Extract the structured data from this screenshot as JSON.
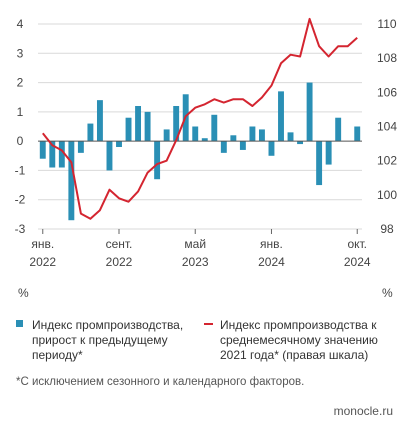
{
  "units": {
    "left": "%",
    "right": "%"
  },
  "legend": [
    {
      "label": "Индекс промпроизводства,\nприрост к предыдущему\nпериоду*",
      "color": "#2a8fb5",
      "kind": "bar"
    },
    {
      "label": "Индекс промпроизводства к\nсреднемесячному значению\n2021 года* (правая шкала)",
      "color": "#d42530",
      "kind": "line"
    }
  ],
  "footnote": "*С исключением сезонного и календарного факторов.",
  "source": "monocle.ru",
  "chart_data": {
    "type": "bar+line",
    "categories": [
      "2022-01",
      "2022-02",
      "2022-03",
      "2022-04",
      "2022-05",
      "2022-06",
      "2022-07",
      "2022-08",
      "2022-09",
      "2022-10",
      "2022-11",
      "2022-12",
      "2023-01",
      "2023-02",
      "2023-03",
      "2023-04",
      "2023-05",
      "2023-06",
      "2023-07",
      "2023-08",
      "2023-09",
      "2023-10",
      "2023-11",
      "2023-12",
      "2024-01",
      "2024-02",
      "2024-03",
      "2024-04",
      "2024-05",
      "2024-06",
      "2024-07",
      "2024-08",
      "2024-09",
      "2024-10"
    ],
    "x_tick_labels": [
      {
        "index": 0,
        "line1": "янв.",
        "line2": "2022"
      },
      {
        "index": 8,
        "line1": "сент.",
        "line2": "2022"
      },
      {
        "index": 16,
        "line1": "май",
        "line2": "2023"
      },
      {
        "index": 24,
        "line1": "янв.",
        "line2": "2024"
      },
      {
        "index": 33,
        "line1": "окт.",
        "line2": "2024"
      }
    ],
    "series": [
      {
        "name": "Индекс промпроизводства, прирост к предыдущему периоду*",
        "axis": "left",
        "type": "bar",
        "color": "#2a8fb5",
        "values": [
          -0.6,
          -0.9,
          -0.9,
          -2.7,
          -0.4,
          0.6,
          1.4,
          -1.0,
          -0.2,
          0.8,
          1.2,
          1.0,
          -1.3,
          0.4,
          1.2,
          1.6,
          0.5,
          0.1,
          0.9,
          -0.4,
          0.2,
          -0.3,
          0.5,
          0.4,
          -0.5,
          1.7,
          0.3,
          -0.1,
          2.0,
          -1.5,
          -0.8,
          0.8,
          0.0,
          0.5
        ]
      },
      {
        "name": "Индекс промпроизводства к среднемесячному значению 2021 года* (правая шкала)",
        "axis": "right",
        "type": "line",
        "color": "#d42530",
        "values": [
          103.6,
          102.9,
          102.6,
          101.9,
          98.9,
          98.6,
          99.1,
          100.3,
          99.8,
          99.6,
          100.2,
          101.3,
          101.8,
          102.0,
          103.2,
          104.6,
          105.1,
          105.3,
          105.6,
          105.4,
          105.6,
          105.6,
          105.2,
          105.7,
          106.4,
          107.7,
          108.2,
          108.1,
          110.3,
          108.7,
          108.1,
          108.7,
          108.7,
          109.2
        ]
      }
    ],
    "y_left": {
      "min": -3,
      "max": 4,
      "ticks": [
        -3,
        -2,
        -1,
        0,
        1,
        2,
        3,
        4
      ]
    },
    "y_right": {
      "min": 98,
      "max": 110,
      "ticks": [
        98,
        100,
        102,
        104,
        106,
        108,
        110
      ]
    },
    "grid": "horizontal"
  }
}
